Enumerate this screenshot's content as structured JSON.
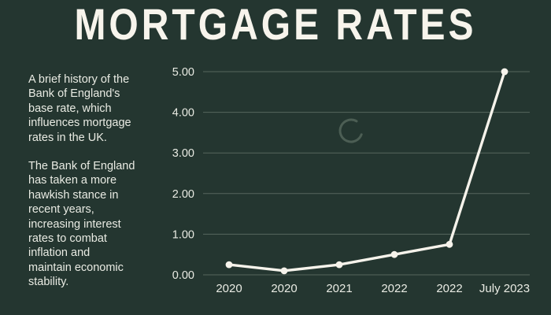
{
  "page": {
    "title": "MORTGAGE RATES",
    "background_color": "#243630",
    "title_color": "#f7f4ec",
    "text_color": "#e9ebe3"
  },
  "description": {
    "paragraphs": [
      "A brief history of the\nBank of England's\nbase rate, which\ninfluences mortgage\nrates in the UK.",
      "The Bank of England\nhas taken a more\nhawkish stance in\nrecent years,\nincreasing interest\nrates to combat\ninflation and\nmaintain economic\nstability."
    ]
  },
  "chart_data": {
    "type": "line",
    "title": "",
    "xlabel": "",
    "ylabel": "",
    "x_labels": [
      "2020",
      "2020",
      "2021",
      "2022",
      "2022",
      "July 2023"
    ],
    "series": [
      {
        "name": "Bank of England base rate (%)",
        "values": [
          0.25,
          0.1,
          0.25,
          0.5,
          0.75,
          5.0
        ]
      }
    ],
    "y_tick_labels": [
      "0.00",
      "1.00",
      "2.00",
      "3.00",
      "4.00",
      "5.00"
    ],
    "y_tick_values": [
      0,
      1,
      2,
      3,
      4,
      5
    ],
    "ylim": [
      0,
      5
    ],
    "grid": true,
    "legend_position": "none",
    "line_color": "#f6f3eb",
    "marker_color": "#f6f3eb",
    "grid_color": "#56675d",
    "label_color": "#e9ebe3"
  },
  "loader": {
    "name": "loading-spinner",
    "color": "#4c5e54"
  }
}
